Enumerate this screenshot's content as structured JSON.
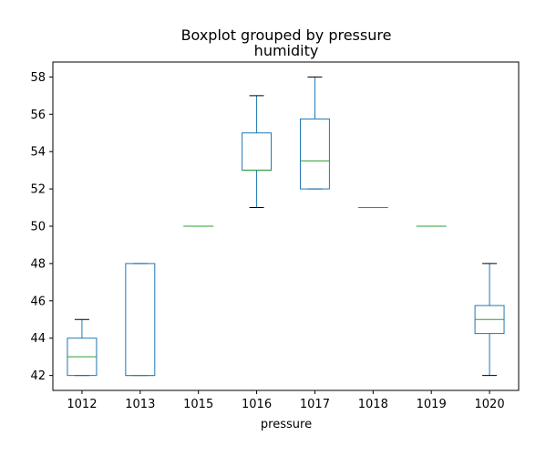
{
  "chart_data": {
    "type": "box",
    "suptitle": "Boxplot grouped by pressure",
    "title": "humidity",
    "xlabel": "pressure",
    "ylabel": "",
    "ylim": [
      41.2,
      58.8
    ],
    "yticks": [
      42,
      44,
      46,
      48,
      50,
      52,
      54,
      56,
      58
    ],
    "grid": false,
    "colors": {
      "box": "#1f77b4",
      "median": "#2ca02c",
      "whisker_cap": "#000000"
    },
    "boxes": [
      {
        "category": "1012",
        "min": 42,
        "q1": 42,
        "median": 43,
        "q3": 44,
        "max": 45
      },
      {
        "category": "1013",
        "min": 42,
        "q1": 42,
        "median": 42,
        "q3": 48,
        "max": 48
      },
      {
        "category": "1015",
        "min": 50,
        "q1": 50,
        "median": 50,
        "q3": 50,
        "max": 50
      },
      {
        "category": "1016",
        "min": 51,
        "q1": 53,
        "median": 53,
        "q3": 55,
        "max": 57
      },
      {
        "category": "1017",
        "min": 52,
        "q1": 52,
        "median": 53.5,
        "q3": 55.75,
        "max": 58
      },
      {
        "category": "1018",
        "min": 51,
        "q1": 51,
        "median": 51,
        "q3": 51,
        "max": 51
      },
      {
        "category": "1019",
        "min": 50,
        "q1": 50,
        "median": 50,
        "q3": 50,
        "max": 50
      },
      {
        "category": "1020",
        "min": 42,
        "q1": 44.25,
        "median": 45,
        "q3": 45.75,
        "max": 48
      }
    ]
  }
}
